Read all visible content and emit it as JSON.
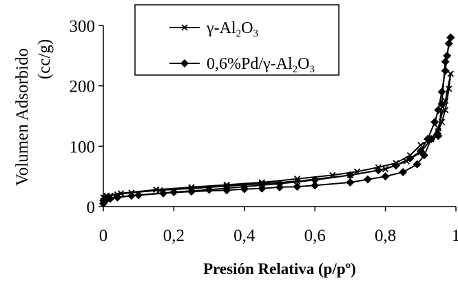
{
  "chart_data": {
    "type": "line",
    "title": "",
    "xlabel": "Presión Relativa (p/pº)",
    "ylabel": [
      "Volumen Adsorbido",
      "(cc/g)"
    ],
    "xlim": [
      0,
      1
    ],
    "ylim": [
      0,
      300
    ],
    "xticks": [
      0,
      0.2,
      0.4,
      0.6,
      0.8,
      1
    ],
    "xtick_labels": [
      "0",
      "0,2",
      "0,4",
      "0,6",
      "0,8",
      "1"
    ],
    "yticks": [
      0,
      100,
      200,
      300
    ],
    "ytick_labels": [
      "0",
      "100",
      "200",
      "300"
    ],
    "grid": false,
    "legend_position": "top-center",
    "series": [
      {
        "name_parts": [
          "γ-Al",
          "2",
          "O",
          "3"
        ],
        "marker": "x",
        "color": "#000000",
        "adsorption": [
          [
            0.0,
            10
          ],
          [
            0.005,
            15
          ],
          [
            0.01,
            16
          ],
          [
            0.02,
            18
          ],
          [
            0.04,
            20
          ],
          [
            0.08,
            23
          ],
          [
            0.16,
            27
          ],
          [
            0.25,
            30
          ],
          [
            0.35,
            34
          ],
          [
            0.45,
            38
          ],
          [
            0.55,
            42
          ],
          [
            0.7,
            52
          ],
          [
            0.8,
            62
          ],
          [
            0.86,
            75
          ],
          [
            0.9,
            90
          ],
          [
            0.93,
            112
          ],
          [
            0.95,
            130
          ],
          [
            0.97,
            175
          ],
          [
            0.985,
            220
          ]
        ],
        "desorption": [
          [
            0.985,
            220
          ],
          [
            0.98,
            195
          ],
          [
            0.97,
            160
          ],
          [
            0.96,
            140
          ],
          [
            0.95,
            125
          ],
          [
            0.93,
            112
          ],
          [
            0.9,
            102
          ],
          [
            0.87,
            85
          ],
          [
            0.83,
            72
          ],
          [
            0.78,
            65
          ],
          [
            0.72,
            58
          ],
          [
            0.65,
            52
          ],
          [
            0.55,
            46
          ],
          [
            0.45,
            40
          ],
          [
            0.35,
            36
          ],
          [
            0.25,
            32
          ],
          [
            0.15,
            28
          ],
          [
            0.05,
            22
          ],
          [
            0.01,
            18
          ],
          [
            0.0,
            15
          ]
        ]
      },
      {
        "name_parts": [
          "0,6%Pd/γ-Al",
          "2",
          "O",
          "3"
        ],
        "marker": "diamond",
        "color": "#000000",
        "adsorption": [
          [
            0.0,
            5
          ],
          [
            0.005,
            10
          ],
          [
            0.01,
            12
          ],
          [
            0.02,
            13
          ],
          [
            0.04,
            15
          ],
          [
            0.08,
            18
          ],
          [
            0.17,
            22
          ],
          [
            0.25,
            25
          ],
          [
            0.35,
            27
          ],
          [
            0.4,
            29
          ],
          [
            0.45,
            30
          ],
          [
            0.5,
            32
          ],
          [
            0.55,
            33
          ],
          [
            0.6,
            35
          ],
          [
            0.7,
            40
          ],
          [
            0.75,
            45
          ],
          [
            0.8,
            50
          ],
          [
            0.85,
            57
          ],
          [
            0.89,
            70
          ],
          [
            0.91,
            85
          ],
          [
            0.93,
            112
          ],
          [
            0.95,
            117
          ],
          [
            0.96,
            170
          ],
          [
            0.97,
            240
          ],
          [
            0.985,
            280
          ]
        ],
        "desorption": [
          [
            0.985,
            280
          ],
          [
            0.98,
            270
          ],
          [
            0.975,
            250
          ],
          [
            0.97,
            225
          ],
          [
            0.96,
            190
          ],
          [
            0.95,
            160
          ],
          [
            0.94,
            140
          ],
          [
            0.92,
            112
          ],
          [
            0.9,
            92
          ],
          [
            0.87,
            80
          ],
          [
            0.83,
            68
          ],
          [
            0.78,
            60
          ],
          [
            0.7,
            52
          ],
          [
            0.6,
            44
          ],
          [
            0.5,
            38
          ],
          [
            0.4,
            33
          ],
          [
            0.3,
            28
          ],
          [
            0.2,
            24
          ],
          [
            0.1,
            19
          ],
          [
            0.04,
            16
          ],
          [
            0.01,
            13
          ],
          [
            0.0,
            10
          ]
        ]
      }
    ]
  }
}
